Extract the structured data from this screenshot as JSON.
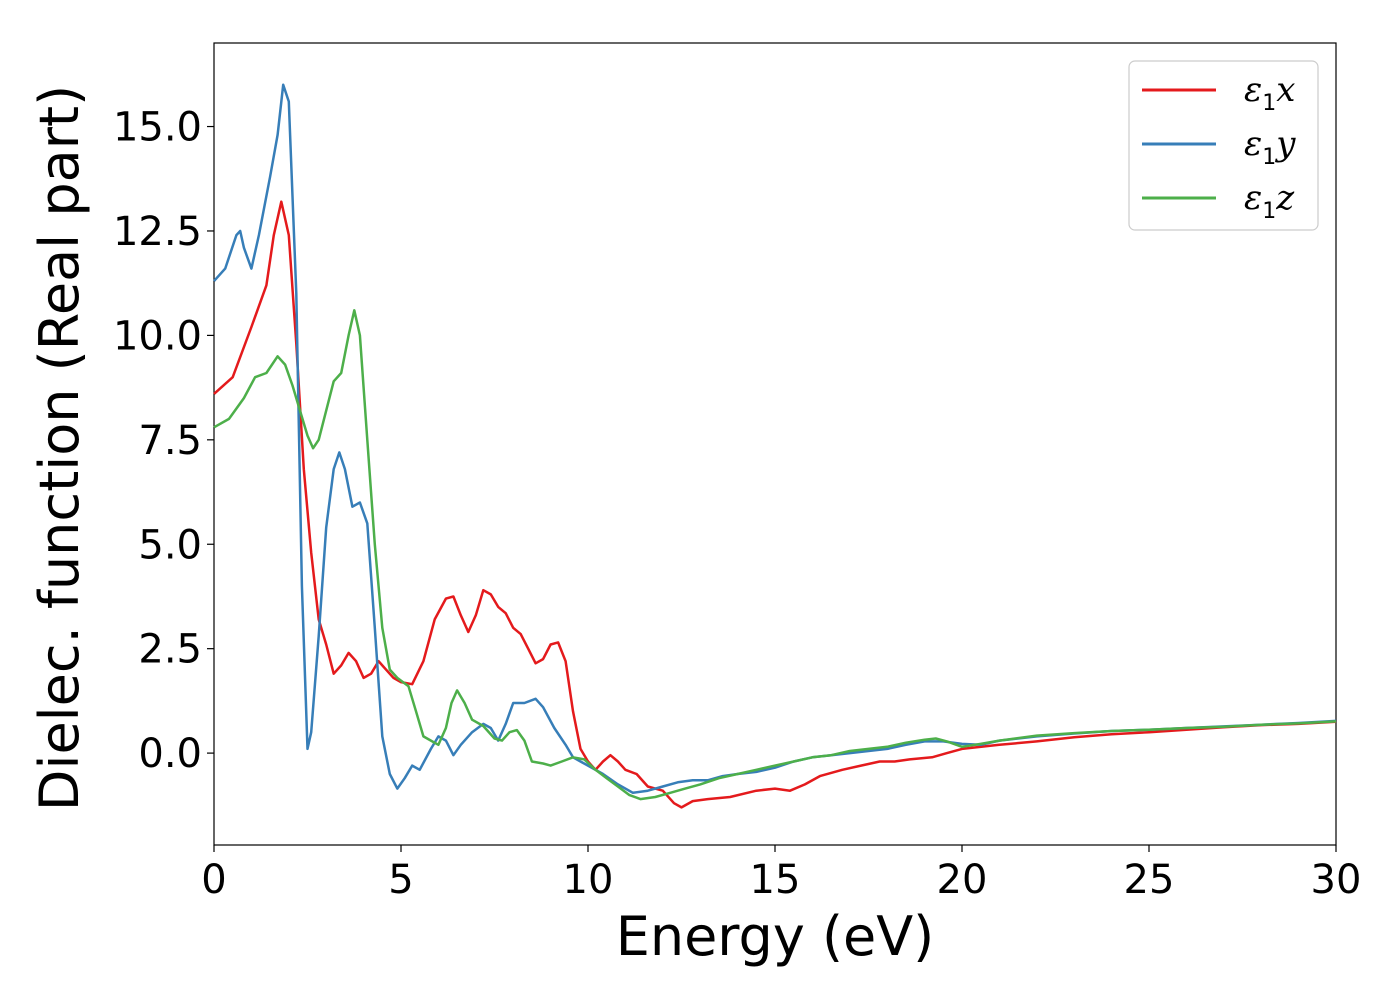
{
  "chart_data": {
    "type": "line",
    "xlabel": "Energy (eV)",
    "ylabel": "Dielec. function (Real part)",
    "xlim": [
      0,
      30
    ],
    "ylim": [
      -2.2,
      17.0
    ],
    "x_ticks": [
      "0",
      "5",
      "10",
      "15",
      "20",
      "25",
      "30"
    ],
    "y_ticks": [
      "0.0",
      "2.5",
      "5.0",
      "7.5",
      "10.0",
      "12.5",
      "15.0"
    ],
    "grid": false,
    "legend_position": "top-right",
    "series": [
      {
        "name": "ε1x",
        "legend_symbol": "ε",
        "legend_sub": "1",
        "legend_var": "x",
        "color": "#e41a1c",
        "points": [
          [
            0,
            8.6
          ],
          [
            0.5,
            9.0
          ],
          [
            1.0,
            10.2
          ],
          [
            1.4,
            11.2
          ],
          [
            1.6,
            12.4
          ],
          [
            1.8,
            13.2
          ],
          [
            2.0,
            12.4
          ],
          [
            2.2,
            9.8
          ],
          [
            2.4,
            6.8
          ],
          [
            2.6,
            4.8
          ],
          [
            2.8,
            3.2
          ],
          [
            3.0,
            2.6
          ],
          [
            3.2,
            1.9
          ],
          [
            3.4,
            2.1
          ],
          [
            3.6,
            2.4
          ],
          [
            3.8,
            2.2
          ],
          [
            4.0,
            1.8
          ],
          [
            4.2,
            1.9
          ],
          [
            4.4,
            2.2
          ],
          [
            4.6,
            2.0
          ],
          [
            4.8,
            1.8
          ],
          [
            5.0,
            1.7
          ],
          [
            5.3,
            1.65
          ],
          [
            5.6,
            2.2
          ],
          [
            5.9,
            3.2
          ],
          [
            6.2,
            3.7
          ],
          [
            6.4,
            3.75
          ],
          [
            6.6,
            3.3
          ],
          [
            6.8,
            2.9
          ],
          [
            7.0,
            3.3
          ],
          [
            7.2,
            3.9
          ],
          [
            7.4,
            3.8
          ],
          [
            7.6,
            3.5
          ],
          [
            7.8,
            3.35
          ],
          [
            8.0,
            3.0
          ],
          [
            8.2,
            2.85
          ],
          [
            8.4,
            2.5
          ],
          [
            8.6,
            2.15
          ],
          [
            8.8,
            2.25
          ],
          [
            9.0,
            2.6
          ],
          [
            9.2,
            2.65
          ],
          [
            9.4,
            2.2
          ],
          [
            9.6,
            1.0
          ],
          [
            9.8,
            0.1
          ],
          [
            10.0,
            -0.2
          ],
          [
            10.2,
            -0.4
          ],
          [
            10.4,
            -0.2
          ],
          [
            10.6,
            -0.05
          ],
          [
            10.8,
            -0.2
          ],
          [
            11.0,
            -0.4
          ],
          [
            11.3,
            -0.5
          ],
          [
            11.6,
            -0.8
          ],
          [
            12.0,
            -0.9
          ],
          [
            12.3,
            -1.2
          ],
          [
            12.5,
            -1.3
          ],
          [
            12.8,
            -1.15
          ],
          [
            13.2,
            -1.1
          ],
          [
            13.8,
            -1.05
          ],
          [
            14.5,
            -0.9
          ],
          [
            15.0,
            -0.85
          ],
          [
            15.4,
            -0.9
          ],
          [
            15.8,
            -0.75
          ],
          [
            16.2,
            -0.55
          ],
          [
            16.8,
            -0.4
          ],
          [
            17.3,
            -0.3
          ],
          [
            17.8,
            -0.2
          ],
          [
            18.2,
            -0.2
          ],
          [
            18.6,
            -0.15
          ],
          [
            19.2,
            -0.1
          ],
          [
            19.6,
            0.0
          ],
          [
            20.0,
            0.1
          ],
          [
            21.0,
            0.2
          ],
          [
            22.0,
            0.28
          ],
          [
            23.0,
            0.38
          ],
          [
            24.0,
            0.45
          ],
          [
            25.0,
            0.5
          ],
          [
            26.0,
            0.56
          ],
          [
            27.0,
            0.62
          ],
          [
            28.0,
            0.67
          ],
          [
            29.0,
            0.7
          ],
          [
            30.0,
            0.75
          ]
        ]
      },
      {
        "name": "ε1y",
        "legend_symbol": "ε",
        "legend_sub": "1",
        "legend_var": "y",
        "color": "#377eb8",
        "points": [
          [
            0,
            11.3
          ],
          [
            0.3,
            11.6
          ],
          [
            0.6,
            12.4
          ],
          [
            0.7,
            12.5
          ],
          [
            0.8,
            12.1
          ],
          [
            1.0,
            11.6
          ],
          [
            1.2,
            12.4
          ],
          [
            1.5,
            13.8
          ],
          [
            1.7,
            14.8
          ],
          [
            1.85,
            16.0
          ],
          [
            2.0,
            15.6
          ],
          [
            2.2,
            11.0
          ],
          [
            2.35,
            4.0
          ],
          [
            2.5,
            0.1
          ],
          [
            2.6,
            0.5
          ],
          [
            2.8,
            2.8
          ],
          [
            3.0,
            5.4
          ],
          [
            3.2,
            6.8
          ],
          [
            3.35,
            7.2
          ],
          [
            3.5,
            6.8
          ],
          [
            3.7,
            5.9
          ],
          [
            3.9,
            6.0
          ],
          [
            4.1,
            5.5
          ],
          [
            4.3,
            3.0
          ],
          [
            4.5,
            0.4
          ],
          [
            4.7,
            -0.5
          ],
          [
            4.9,
            -0.85
          ],
          [
            5.1,
            -0.6
          ],
          [
            5.3,
            -0.3
          ],
          [
            5.5,
            -0.4
          ],
          [
            5.8,
            0.1
          ],
          [
            6.0,
            0.4
          ],
          [
            6.2,
            0.3
          ],
          [
            6.4,
            -0.05
          ],
          [
            6.6,
            0.2
          ],
          [
            6.9,
            0.5
          ],
          [
            7.2,
            0.7
          ],
          [
            7.4,
            0.6
          ],
          [
            7.6,
            0.3
          ],
          [
            7.8,
            0.7
          ],
          [
            8.0,
            1.2
          ],
          [
            8.3,
            1.2
          ],
          [
            8.6,
            1.3
          ],
          [
            8.8,
            1.1
          ],
          [
            9.1,
            0.6
          ],
          [
            9.4,
            0.2
          ],
          [
            9.6,
            -0.1
          ],
          [
            9.8,
            -0.2
          ],
          [
            10.0,
            -0.3
          ],
          [
            10.4,
            -0.5
          ],
          [
            10.8,
            -0.75
          ],
          [
            11.2,
            -0.95
          ],
          [
            11.6,
            -0.9
          ],
          [
            12.0,
            -0.8
          ],
          [
            12.4,
            -0.7
          ],
          [
            12.8,
            -0.65
          ],
          [
            13.2,
            -0.65
          ],
          [
            13.6,
            -0.55
          ],
          [
            14.0,
            -0.5
          ],
          [
            14.5,
            -0.45
          ],
          [
            15.0,
            -0.35
          ],
          [
            15.5,
            -0.2
          ],
          [
            16.0,
            -0.1
          ],
          [
            16.5,
            -0.05
          ],
          [
            17.0,
            0.0
          ],
          [
            17.5,
            0.05
          ],
          [
            18.0,
            0.1
          ],
          [
            18.5,
            0.2
          ],
          [
            19.0,
            0.28
          ],
          [
            19.5,
            0.28
          ],
          [
            20.0,
            0.22
          ],
          [
            20.5,
            0.2
          ],
          [
            21.0,
            0.3
          ],
          [
            22.0,
            0.4
          ],
          [
            23.0,
            0.47
          ],
          [
            24.0,
            0.53
          ],
          [
            25.0,
            0.56
          ],
          [
            26.0,
            0.6
          ],
          [
            27.0,
            0.64
          ],
          [
            28.0,
            0.68
          ],
          [
            29.0,
            0.72
          ],
          [
            30.0,
            0.77
          ]
        ]
      },
      {
        "name": "ε1z",
        "legend_symbol": "ε",
        "legend_sub": "1",
        "legend_var": "z",
        "color": "#4daf4a",
        "points": [
          [
            0,
            7.8
          ],
          [
            0.4,
            8.0
          ],
          [
            0.8,
            8.5
          ],
          [
            1.1,
            9.0
          ],
          [
            1.4,
            9.1
          ],
          [
            1.7,
            9.5
          ],
          [
            1.9,
            9.3
          ],
          [
            2.1,
            8.8
          ],
          [
            2.3,
            8.2
          ],
          [
            2.5,
            7.6
          ],
          [
            2.65,
            7.3
          ],
          [
            2.8,
            7.5
          ],
          [
            3.0,
            8.2
          ],
          [
            3.2,
            8.9
          ],
          [
            3.4,
            9.1
          ],
          [
            3.6,
            10.0
          ],
          [
            3.75,
            10.6
          ],
          [
            3.9,
            10.0
          ],
          [
            4.1,
            7.5
          ],
          [
            4.3,
            5.0
          ],
          [
            4.5,
            3.0
          ],
          [
            4.7,
            2.0
          ],
          [
            4.9,
            1.8
          ],
          [
            5.2,
            1.6
          ],
          [
            5.4,
            1.0
          ],
          [
            5.6,
            0.4
          ],
          [
            5.8,
            0.3
          ],
          [
            6.0,
            0.2
          ],
          [
            6.2,
            0.6
          ],
          [
            6.35,
            1.2
          ],
          [
            6.5,
            1.5
          ],
          [
            6.7,
            1.2
          ],
          [
            6.9,
            0.8
          ],
          [
            7.2,
            0.65
          ],
          [
            7.5,
            0.35
          ],
          [
            7.7,
            0.3
          ],
          [
            7.9,
            0.5
          ],
          [
            8.1,
            0.55
          ],
          [
            8.3,
            0.3
          ],
          [
            8.5,
            -0.2
          ],
          [
            8.8,
            -0.25
          ],
          [
            9.0,
            -0.3
          ],
          [
            9.3,
            -0.2
          ],
          [
            9.6,
            -0.1
          ],
          [
            9.9,
            -0.15
          ],
          [
            10.2,
            -0.4
          ],
          [
            10.5,
            -0.6
          ],
          [
            10.8,
            -0.8
          ],
          [
            11.1,
            -1.0
          ],
          [
            11.4,
            -1.1
          ],
          [
            11.8,
            -1.05
          ],
          [
            12.2,
            -0.95
          ],
          [
            12.6,
            -0.85
          ],
          [
            13.0,
            -0.75
          ],
          [
            13.5,
            -0.6
          ],
          [
            14.0,
            -0.5
          ],
          [
            14.5,
            -0.4
          ],
          [
            15.0,
            -0.3
          ],
          [
            15.5,
            -0.2
          ],
          [
            16.0,
            -0.1
          ],
          [
            16.5,
            -0.05
          ],
          [
            17.0,
            0.05
          ],
          [
            17.5,
            0.1
          ],
          [
            18.0,
            0.15
          ],
          [
            18.5,
            0.25
          ],
          [
            19.0,
            0.32
          ],
          [
            19.3,
            0.35
          ],
          [
            19.6,
            0.28
          ],
          [
            20.0,
            0.15
          ],
          [
            20.5,
            0.22
          ],
          [
            21.0,
            0.3
          ],
          [
            22.0,
            0.42
          ],
          [
            23.0,
            0.48
          ],
          [
            24.0,
            0.53
          ],
          [
            25.0,
            0.56
          ],
          [
            26.0,
            0.6
          ],
          [
            27.0,
            0.63
          ],
          [
            28.0,
            0.68
          ],
          [
            29.0,
            0.71
          ],
          [
            30.0,
            0.76
          ]
        ]
      }
    ]
  }
}
